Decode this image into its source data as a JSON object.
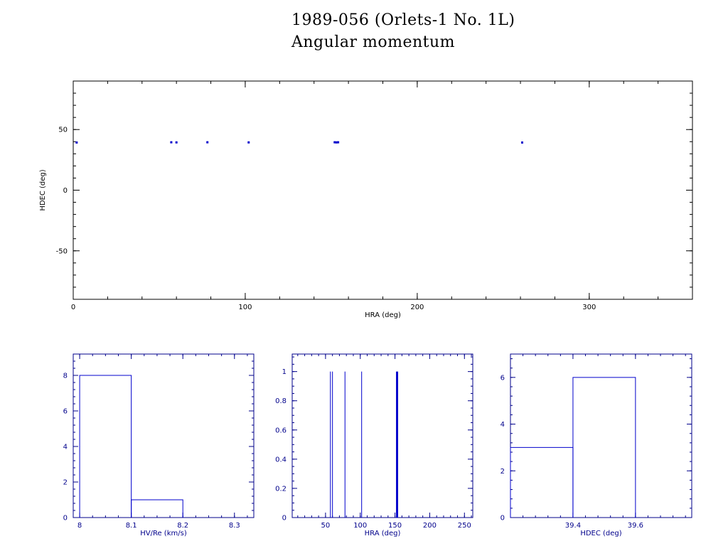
{
  "title": "1989-056 (Orlets-1 No. 1L)",
  "subtitle": "Angular momentum",
  "colors": {
    "axes_main": "#000000",
    "axes_hist": "#00008b",
    "marks": "#0000cc"
  },
  "chart_data": [
    {
      "type": "scatter",
      "xlabel": "HRA (deg)",
      "ylabel": "HDEC (deg)",
      "xlim": [
        0,
        360
      ],
      "ylim": [
        -90,
        90
      ],
      "xticks": [
        0,
        100,
        200,
        300
      ],
      "yticks": [
        -50,
        0,
        50
      ],
      "points": [
        {
          "x": 2,
          "y": 39.3
        },
        {
          "x": 57,
          "y": 39.5
        },
        {
          "x": 60,
          "y": 39.4
        },
        {
          "x": 78,
          "y": 39.5
        },
        {
          "x": 102,
          "y": 39.4
        },
        {
          "x": 152,
          "y": 39.5
        },
        {
          "x": 153,
          "y": 39.4
        },
        {
          "x": 154,
          "y": 39.5
        },
        {
          "x": 261,
          "y": 39.3
        }
      ]
    },
    {
      "type": "bar",
      "xlabel": "HV/Re (km/s)",
      "ylabel": "",
      "xlim": [
        7.9875,
        8.3375
      ],
      "ylim": [
        0,
        9.2
      ],
      "xticks": [
        8,
        8.1,
        8.2,
        8.3
      ],
      "xtick_labels": [
        "8",
        "8.1",
        "8.2",
        "8.3"
      ],
      "yticks": [
        0,
        2,
        4,
        6,
        8
      ],
      "bins": [
        {
          "start": 8.0,
          "end": 8.1,
          "count": 8
        },
        {
          "start": 8.1,
          "end": 8.2,
          "count": 1
        }
      ]
    },
    {
      "type": "bar",
      "xlabel": "HRA (deg)",
      "ylabel": "",
      "xlim": [
        2,
        262
      ],
      "ylim": [
        0,
        1.12
      ],
      "xticks": [
        50,
        100,
        150,
        200,
        250
      ],
      "xtick_labels": [
        "50",
        "100",
        "150",
        "200",
        "250"
      ],
      "yticks": [
        0,
        0.2,
        0.4,
        0.6,
        0.8,
        1
      ],
      "ytick_labels": [
        "0",
        "0.2",
        "0.4",
        "0.6",
        "0.8",
        "1"
      ],
      "spikes": [
        {
          "x": 57,
          "count": 1
        },
        {
          "x": 60,
          "count": 1
        },
        {
          "x": 78,
          "count": 1
        },
        {
          "x": 102,
          "count": 1
        },
        {
          "x": 152,
          "count": 1
        },
        {
          "x": 153,
          "count": 1
        },
        {
          "x": 154,
          "count": 1
        }
      ]
    },
    {
      "type": "bar",
      "xlabel": "HDEC (deg)",
      "ylabel": "",
      "xlim": [
        39.2,
        39.78
      ],
      "ylim": [
        0,
        7
      ],
      "xticks": [
        39.4,
        39.6
      ],
      "xtick_labels": [
        "39.4",
        "39.6"
      ],
      "yticks": [
        0,
        2,
        4,
        6
      ],
      "bins": [
        {
          "start": 39.2,
          "end": 39.4,
          "count": 3
        },
        {
          "start": 39.4,
          "end": 39.6,
          "count": 6
        }
      ]
    }
  ]
}
